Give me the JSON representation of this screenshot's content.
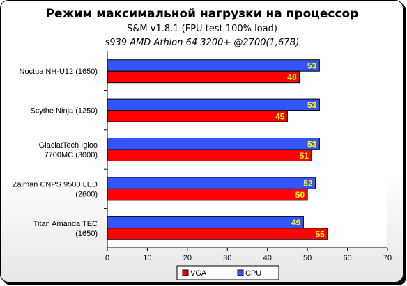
{
  "chart_data": {
    "type": "bar",
    "orientation": "horizontal",
    "title": "Режим максимальной нагрузки на процессор",
    "subtitle": "S&M v1.8.1 (FPU test 100% load)",
    "subtitle2": "s939 AMD Athlon 64 3200+ @2700(1,67В)",
    "categories": [
      [
        "Noctua NH-U12 (1650)"
      ],
      [
        "Scythe Ninja (1250)"
      ],
      [
        "GlaciatTech Igloo",
        "7700MC (3000)"
      ],
      [
        "Zalman CNPS 9500 LED",
        "(2600)"
      ],
      [
        "Titan Amanda TEC",
        "(1650)"
      ]
    ],
    "series": [
      {
        "name": "CPU",
        "color": "#3355ff",
        "values": [
          53,
          53,
          53,
          52,
          49
        ]
      },
      {
        "name": "VGA",
        "color": "#ff0000",
        "values": [
          48,
          45,
          51,
          50,
          55
        ]
      }
    ],
    "xlim": [
      0,
      70
    ],
    "xticks": [
      "0",
      "10",
      "20",
      "30",
      "40",
      "50",
      "60",
      "70"
    ],
    "xtick_values": [
      0,
      10,
      20,
      30,
      40,
      50,
      60,
      70
    ],
    "grid": false,
    "legend": {
      "placement": "bottom",
      "entries": [
        "VGA",
        "CPU"
      ]
    },
    "label_color": "#ffff00"
  }
}
